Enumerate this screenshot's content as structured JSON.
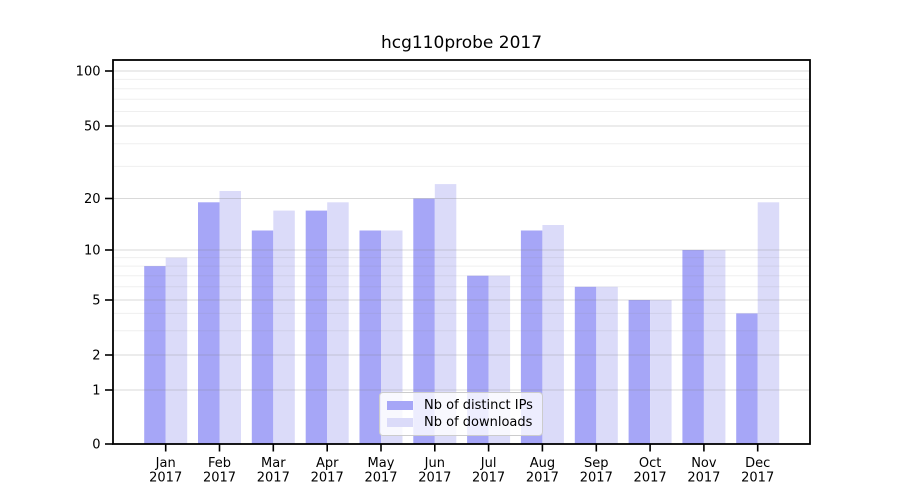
{
  "chart_data": {
    "type": "bar",
    "title": "hcg110probe 2017",
    "categories": [
      "Jan",
      "Feb",
      "Mar",
      "Apr",
      "May",
      "Jun",
      "Jul",
      "Aug",
      "Sep",
      "Oct",
      "Nov",
      "Dec"
    ],
    "x_year_label": "2017",
    "series": [
      {
        "name": "Nb of distinct IPs",
        "color": "#a6a6f7",
        "values": [
          8,
          19,
          13,
          17,
          13,
          20,
          7,
          13,
          6,
          5,
          10,
          4
        ]
      },
      {
        "name": "Nb of downloads",
        "color": "#dbdbf9",
        "values": [
          9,
          22,
          17,
          19,
          13,
          24,
          7,
          14,
          6,
          5,
          10,
          19
        ]
      }
    ],
    "yscale": "symlog",
    "ylim": [
      0,
      120
    ],
    "yticks": [
      100,
      50,
      20,
      10,
      5,
      2,
      1,
      0
    ],
    "ytick_labels": [
      "100",
      "50",
      "20",
      "10",
      "5",
      "2",
      "1",
      "0"
    ],
    "minor_yticks": [
      90,
      80,
      70,
      60,
      40,
      30,
      9,
      8,
      7,
      6,
      4,
      3
    ],
    "grid": true,
    "legend_position": "lower center",
    "colors": {
      "axis": "#000000",
      "major_grid": "rgba(128,128,128,0.30)",
      "minor_grid": "rgba(128,128,128,0.13)",
      "text": "#000000"
    }
  }
}
